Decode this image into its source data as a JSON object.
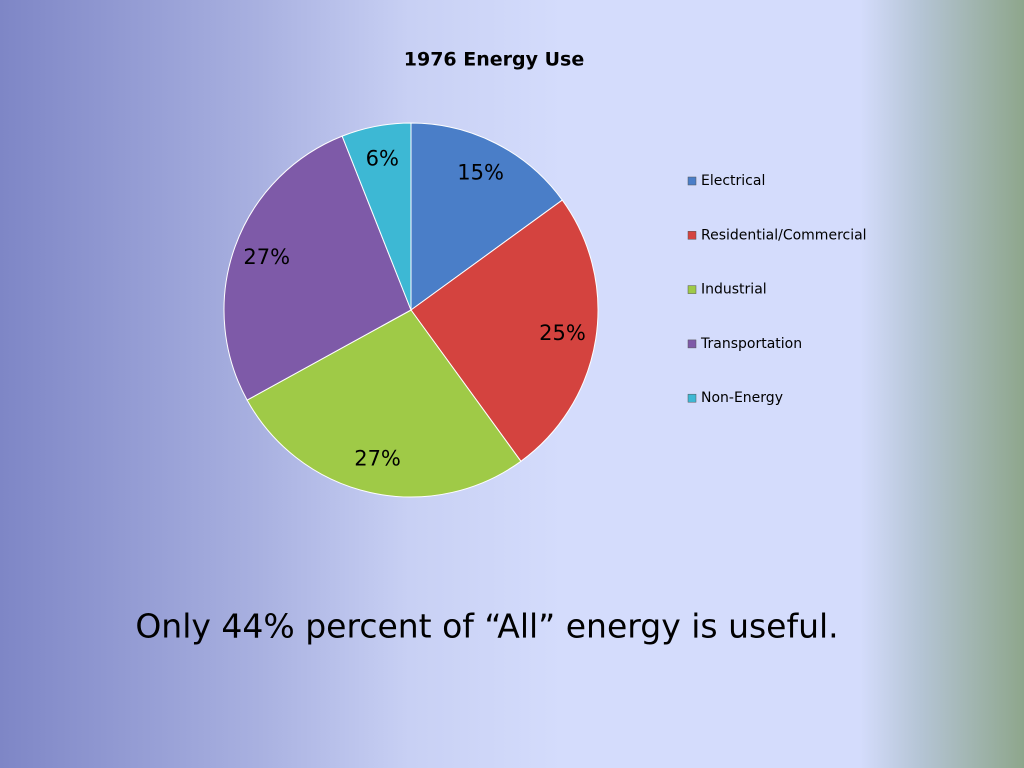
{
  "chart_data": {
    "type": "pie",
    "title": "1976 Energy Use",
    "categories": [
      "Electrical",
      "Residential/Commercial",
      "Industrial",
      "Transportation",
      "Non-Energy"
    ],
    "values": [
      15,
      25,
      27,
      27,
      6
    ],
    "value_labels": [
      "15%",
      "25%",
      "27%",
      "27%",
      "6%"
    ],
    "colors": [
      "#4a7ec8",
      "#d4433f",
      "#9fca47",
      "#7e5aa8",
      "#3db8d4"
    ],
    "legend": "right"
  },
  "slide_text": "Only 44% percent of “All” energy is useful."
}
